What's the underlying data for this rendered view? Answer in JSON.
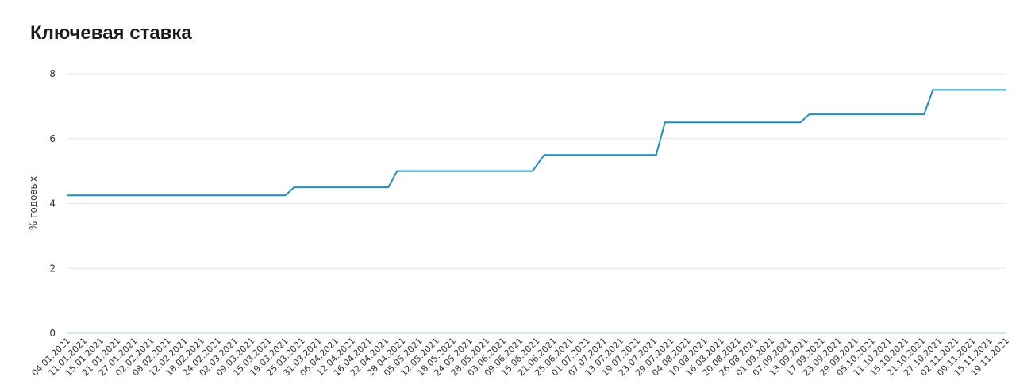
{
  "chart_data": {
    "type": "line",
    "title": "Ключевая ставка",
    "ylabel": "% годовых",
    "xlabel": "",
    "ylim": [
      0,
      8
    ],
    "yticks": [
      0,
      2,
      4,
      6,
      8
    ],
    "series_color": "#1b8ec2",
    "grid": true,
    "xlim": [
      "2021-01-04",
      "2021-11-19"
    ],
    "x_tick_labels": [
      "04.01.2021",
      "11.01.2021",
      "15.01.2021",
      "21.01.2021",
      "27.01.2021",
      "02.02.2021",
      "08.02.2021",
      "12.02.2021",
      "18.02.2021",
      "24.02.2021",
      "02.03.2021",
      "09.03.2021",
      "15.03.2021",
      "19.03.2021",
      "25.03.2021",
      "31.03.2021",
      "06.04.2021",
      "12.04.2021",
      "16.04.2021",
      "22.04.2021",
      "28.04.2021",
      "05.05.2021",
      "12.05.2021",
      "18.05.2021",
      "24.05.2021",
      "28.05.2021",
      "03.06.2021",
      "09.06.2021",
      "15.06.2021",
      "21.06.2021",
      "25.06.2021",
      "01.07.2021",
      "07.07.2021",
      "13.07.2021",
      "19.07.2021",
      "23.07.2021",
      "29.07.2021",
      "04.08.2021",
      "10.08.2021",
      "16.08.2021",
      "20.08.2021",
      "26.08.2021",
      "01.09.2021",
      "07.09.2021",
      "13.09.2021",
      "17.09.2021",
      "23.09.2021",
      "29.09.2021",
      "05.10.2021",
      "11.10.2021",
      "15.10.2021",
      "21.10.2021",
      "27.10.2021",
      "02.11.2021",
      "09.11.2021",
      "15.11.2021",
      "19.11.2021"
    ],
    "series": [
      {
        "x": [
          "2021-01-04",
          "2021-03-19",
          "2021-03-22",
          "2021-04-23",
          "2021-04-26",
          "2021-06-11",
          "2021-06-15",
          "2021-07-23",
          "2021-07-26",
          "2021-09-10",
          "2021-09-13",
          "2021-10-22",
          "2021-10-25",
          "2021-11-19"
        ],
        "y": [
          4.25,
          4.25,
          4.5,
          4.5,
          5.0,
          5.0,
          5.5,
          5.5,
          6.5,
          6.5,
          6.75,
          6.75,
          7.5,
          7.5
        ]
      }
    ]
  }
}
